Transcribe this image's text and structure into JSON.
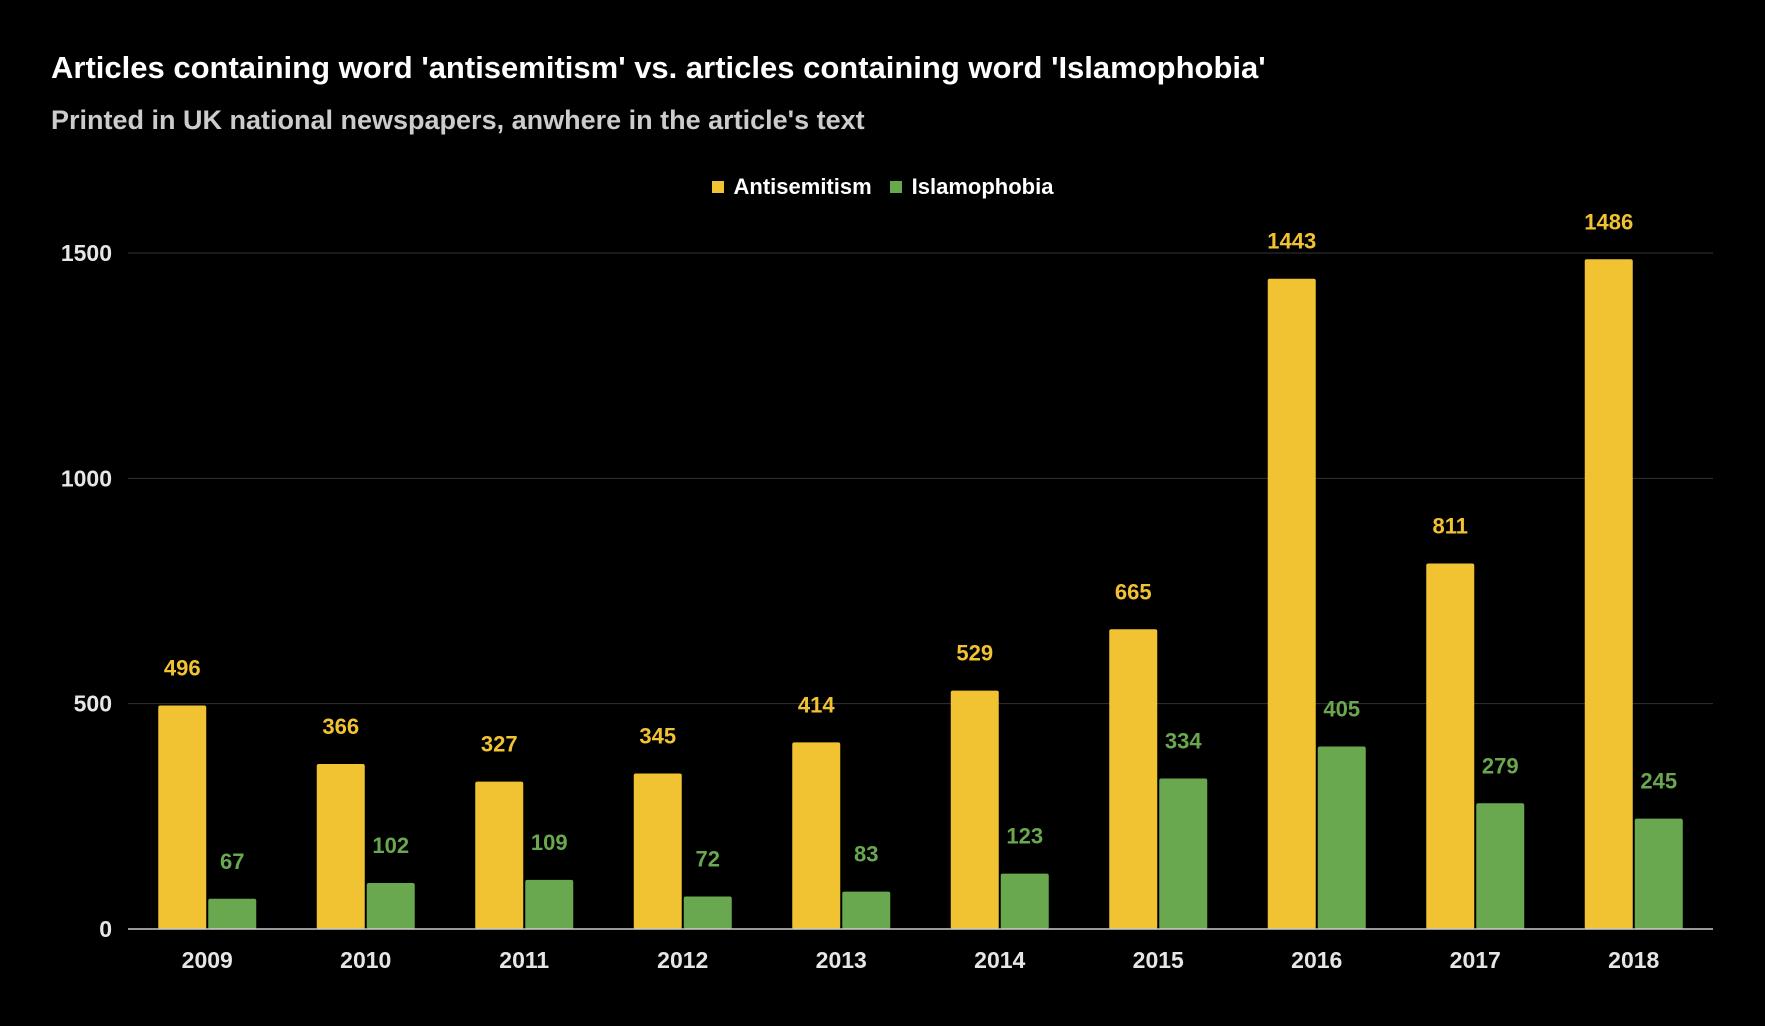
{
  "colors": {
    "antisemitism": "#f1c232",
    "islamophobia": "#6aa84f",
    "gridline": "#333333",
    "axis": "#cccccc"
  },
  "chart_data": {
    "type": "bar",
    "title": "Articles containing word 'antisemitism' vs. articles containing word 'Islamophobia'",
    "subtitle": "Printed in UK national newspapers, anwhere in the article's text",
    "xlabel": "",
    "ylabel": "",
    "ylim": [
      0,
      1500
    ],
    "yticks": [
      "0",
      "500",
      "1000",
      "1500"
    ],
    "ytick_values": [
      0,
      500,
      1000,
      1500
    ],
    "legend_position": "top-center",
    "categories": [
      "2009",
      "2010",
      "2011",
      "2012",
      "2013",
      "2014",
      "2015",
      "2016",
      "2017",
      "2018"
    ],
    "series": [
      {
        "name": "Antisemitism",
        "color": "#f1c232",
        "values": [
          496,
          366,
          327,
          345,
          414,
          529,
          665,
          1443,
          811,
          1486
        ]
      },
      {
        "name": "Islamophobia",
        "color": "#6aa84f",
        "values": [
          67,
          102,
          109,
          72,
          83,
          123,
          334,
          405,
          279,
          245
        ]
      }
    ]
  }
}
